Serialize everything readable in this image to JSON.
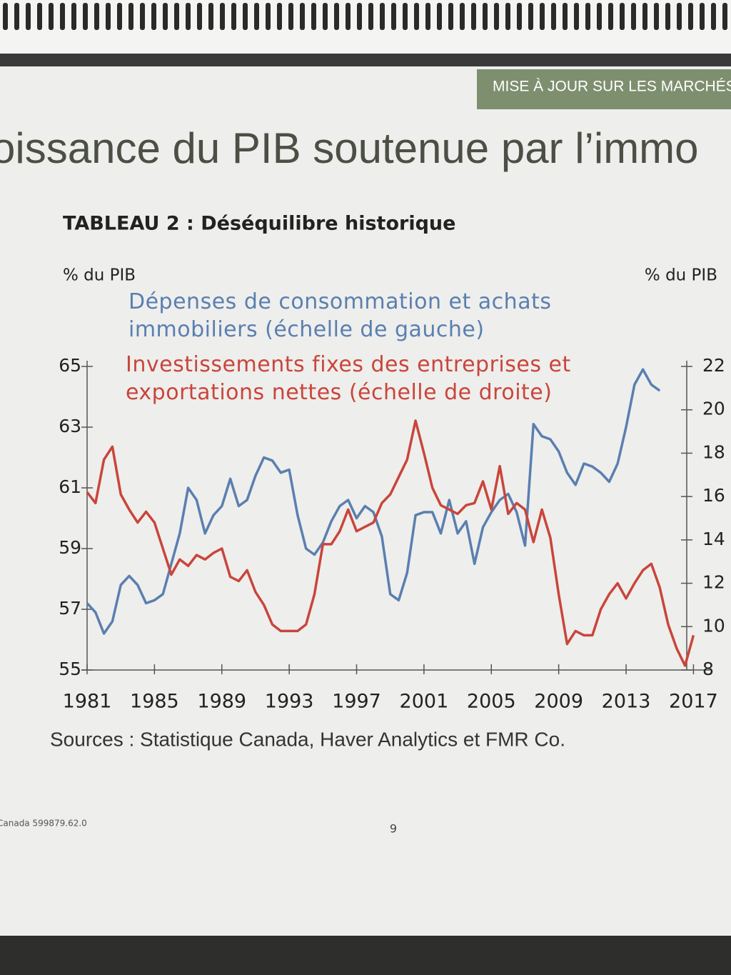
{
  "page": {
    "header_band": "MISE À JOUR SUR LES MARCHÉS",
    "heading": "oissance du PIB soutenue par l’immo",
    "footer_left": "Canada   599879.62.0",
    "page_number": "9"
  },
  "chart_data": {
    "type": "line",
    "title": "TABLEAU 2 : Déséquilibre historique",
    "ylabel": "% du PIB",
    "y2label": "% du PIB",
    "source": "Sources : Statistique Canada, Haver Analytics et FMR Co.",
    "x": [
      1981,
      1981.5,
      1982,
      1982.5,
      1983,
      1983.5,
      1984,
      1984.5,
      1985,
      1985.5,
      1986,
      1986.5,
      1987,
      1987.5,
      1988,
      1988.5,
      1989,
      1989.5,
      1990,
      1990.5,
      1991,
      1991.5,
      1992,
      1992.5,
      1993,
      1993.5,
      1994,
      1994.5,
      1995,
      1995.5,
      1996,
      1996.5,
      1997,
      1997.5,
      1998,
      1998.5,
      1999,
      1999.5,
      2000,
      2000.5,
      2001,
      2001.5,
      2002,
      2002.5,
      2003,
      2003.5,
      2004,
      2004.5,
      2005,
      2005.5,
      2006,
      2006.5,
      2007,
      2007.5,
      2008,
      2008.5,
      2009,
      2009.5,
      2010,
      2010.5,
      2011,
      2011.5,
      2012,
      2012.5,
      2013,
      2013.5,
      2014,
      2014.5,
      2015,
      2015.5,
      2016,
      2016.5,
      2017
    ],
    "xlim": [
      1981,
      2018
    ],
    "xticks": [
      1981,
      1985,
      1989,
      1993,
      1997,
      2001,
      2005,
      2009,
      2013,
      2017
    ],
    "ylim": [
      55,
      65
    ],
    "yticks": [
      55,
      57,
      59,
      61,
      63,
      65
    ],
    "y2lim": [
      8,
      22
    ],
    "y2ticks": [
      8,
      10,
      12,
      14,
      16,
      18,
      20,
      22
    ],
    "series": [
      {
        "name": "Dépenses de consommation et achats immobiliers (échelle de gauche)",
        "color": "#5a7fb0",
        "values": [
          57.2,
          56.9,
          56.2,
          56.6,
          57.8,
          58.1,
          57.8,
          57.2,
          57.3,
          57.5,
          58.5,
          59.5,
          61.0,
          60.6,
          59.5,
          60.1,
          60.4,
          61.3,
          60.4,
          60.6,
          61.4,
          62.0,
          61.9,
          61.5,
          61.6,
          60.1,
          59.0,
          58.8,
          59.2,
          59.9,
          60.4,
          60.6,
          60.0,
          60.4,
          60.2,
          59.4,
          57.5,
          57.3,
          58.2,
          60.1,
          60.2,
          60.2,
          59.5,
          60.6,
          59.5,
          59.9,
          58.5,
          59.7,
          60.2,
          60.6,
          60.8,
          60.2,
          59.1,
          63.1,
          62.7,
          62.6,
          62.2,
          61.5,
          61.1,
          61.8,
          61.7,
          61.5,
          61.2,
          61.8,
          63.0,
          64.4,
          64.9,
          64.4,
          64.2,
          null,
          null,
          null,
          null
        ]
      },
      {
        "name": "Investissements fixes des entreprises et exportations nettes (échelle de droite)",
        "color": "#c9453b",
        "axis": "y2",
        "values": [
          16.2,
          15.7,
          17.7,
          18.3,
          16.1,
          15.4,
          14.8,
          15.3,
          14.8,
          13.6,
          12.4,
          13.1,
          12.8,
          13.3,
          13.1,
          13.4,
          13.6,
          12.3,
          12.1,
          12.6,
          11.6,
          11.0,
          10.1,
          9.8,
          9.8,
          9.8,
          10.1,
          11.5,
          13.8,
          13.8,
          14.4,
          15.4,
          14.4,
          14.6,
          14.8,
          15.7,
          16.1,
          16.9,
          17.7,
          19.5,
          18.0,
          16.4,
          15.6,
          15.4,
          15.2,
          15.6,
          15.7,
          16.7,
          15.4,
          17.4,
          15.2,
          15.7,
          15.4,
          13.9,
          15.4,
          14.1,
          11.5,
          9.2,
          9.8,
          9.6,
          9.6,
          10.8,
          11.5,
          12.0,
          11.3,
          12.0,
          12.6,
          12.9,
          11.8,
          10.1,
          9.0,
          8.2,
          9.6
        ]
      }
    ]
  }
}
